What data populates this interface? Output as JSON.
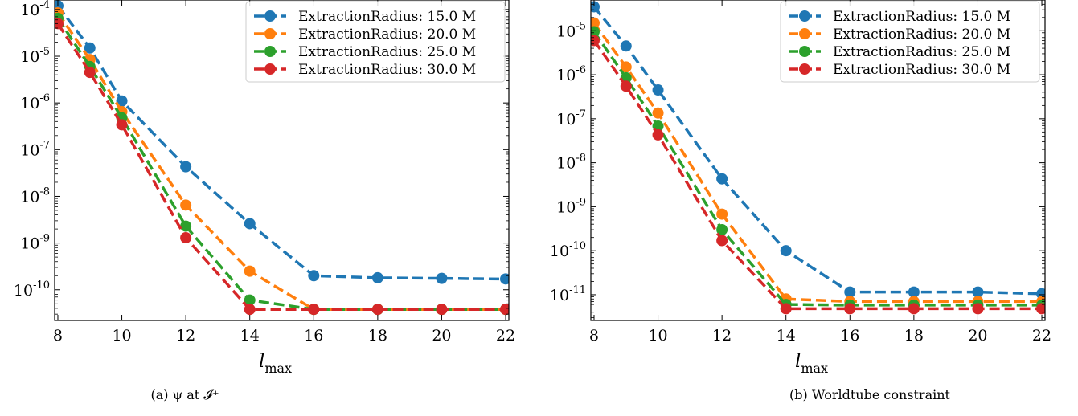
{
  "chart_data": [
    {
      "type": "line",
      "caption": "(a) ψ at 𝓘⁺",
      "xlabel": "l",
      "xlabel_sub": "max",
      "ylabel": "",
      "yscale": "log",
      "xlim": [
        7.9,
        22.1
      ],
      "ylim": [
        2.2e-11,
        0.00016
      ],
      "x_ticks": [
        8,
        10,
        12,
        14,
        16,
        18,
        20,
        22
      ],
      "y_ticks": [
        {
          "value": 1e-10,
          "base": "10",
          "exp": "-10"
        },
        {
          "value": 1e-09,
          "base": "10",
          "exp": "-9"
        },
        {
          "value": 1e-08,
          "base": "10",
          "exp": "-8"
        },
        {
          "value": 1e-07,
          "base": "10",
          "exp": "-7"
        },
        {
          "value": 1e-06,
          "base": "10",
          "exp": "-6"
        },
        {
          "value": 1e-05,
          "base": "10",
          "exp": "-5"
        },
        {
          "value": 0.0001,
          "base": "10",
          "exp": "-4"
        }
      ],
      "legend_position": "top-right",
      "x": [
        8,
        9,
        10,
        12,
        14,
        16,
        18,
        20,
        22
      ],
      "series": [
        {
          "name": "ExtractionRadius: 15.0 M",
          "color": "#1f77b4",
          "values": [
            0.00012,
            1.5e-05,
            1.1e-06,
            4.3e-08,
            2.6e-09,
            2e-10,
            1.8e-10,
            1.75e-10,
            1.7e-10
          ]
        },
        {
          "name": "ExtractionRadius: 20.0 M",
          "color": "#ff7f0e",
          "values": [
            8.5e-05,
            8.5e-06,
            6.5e-07,
            6.5e-09,
            2.5e-10,
            3.8e-11,
            3.8e-11,
            3.8e-11,
            3.8e-11
          ]
        },
        {
          "name": "ExtractionRadius: 25.0 M",
          "color": "#2ca02c",
          "values": [
            6.5e-05,
            6e-06,
            4.8e-07,
            2.3e-09,
            6e-11,
            3.8e-11,
            3.8e-11,
            3.8e-11,
            3.8e-11
          ]
        },
        {
          "name": "ExtractionRadius: 30.0 M",
          "color": "#d62728",
          "values": [
            5e-05,
            4.5e-06,
            3.4e-07,
            1.3e-09,
            3.8e-11,
            3.8e-11,
            3.8e-11,
            3.8e-11,
            3.8e-11
          ]
        }
      ]
    },
    {
      "type": "line",
      "caption": "(b) Worldtube constraint",
      "xlabel": "l",
      "xlabel_sub": "max",
      "ylabel": "",
      "yscale": "log",
      "xlim": [
        7.9,
        22.1
      ],
      "ylim": [
        2.6e-12,
        5e-05
      ],
      "x_ticks": [
        8,
        10,
        12,
        14,
        16,
        18,
        20,
        22
      ],
      "y_ticks": [
        {
          "value": 1e-11,
          "base": "10",
          "exp": "-11"
        },
        {
          "value": 1e-10,
          "base": "10",
          "exp": "-10"
        },
        {
          "value": 1e-09,
          "base": "10",
          "exp": "-9"
        },
        {
          "value": 1e-08,
          "base": "10",
          "exp": "-8"
        },
        {
          "value": 1e-07,
          "base": "10",
          "exp": "-7"
        },
        {
          "value": 1e-06,
          "base": "10",
          "exp": "-6"
        },
        {
          "value": 1e-05,
          "base": "10",
          "exp": "-5"
        }
      ],
      "legend_position": "top-right",
      "x": [
        8,
        9,
        10,
        12,
        14,
        16,
        18,
        20,
        22
      ],
      "series": [
        {
          "name": "ExtractionRadius: 15.0 M",
          "color": "#1f77b4",
          "values": [
            3.5e-05,
            4.5e-06,
            4.5e-07,
            4.3e-09,
            1e-10,
            1.15e-11,
            1.15e-11,
            1.15e-11,
            1.05e-11
          ]
        },
        {
          "name": "ExtractionRadius: 20.0 M",
          "color": "#ff7f0e",
          "values": [
            1.5e-05,
            1.5e-06,
            1.35e-07,
            6.8e-10,
            8e-12,
            7e-12,
            7e-12,
            7e-12,
            7e-12
          ]
        },
        {
          "name": "ExtractionRadius: 25.0 M",
          "color": "#2ca02c",
          "values": [
            9.5e-06,
            8.5e-07,
            6.8e-08,
            3e-10,
            6e-12,
            5.8e-12,
            5.8e-12,
            5.8e-12,
            5.8e-12
          ]
        },
        {
          "name": "ExtractionRadius: 30.0 M",
          "color": "#d62728",
          "values": [
            6e-06,
            5.5e-07,
            4.3e-08,
            1.7e-10,
            4.8e-12,
            4.8e-12,
            4.8e-12,
            4.8e-12,
            4.8e-12
          ]
        }
      ]
    }
  ]
}
